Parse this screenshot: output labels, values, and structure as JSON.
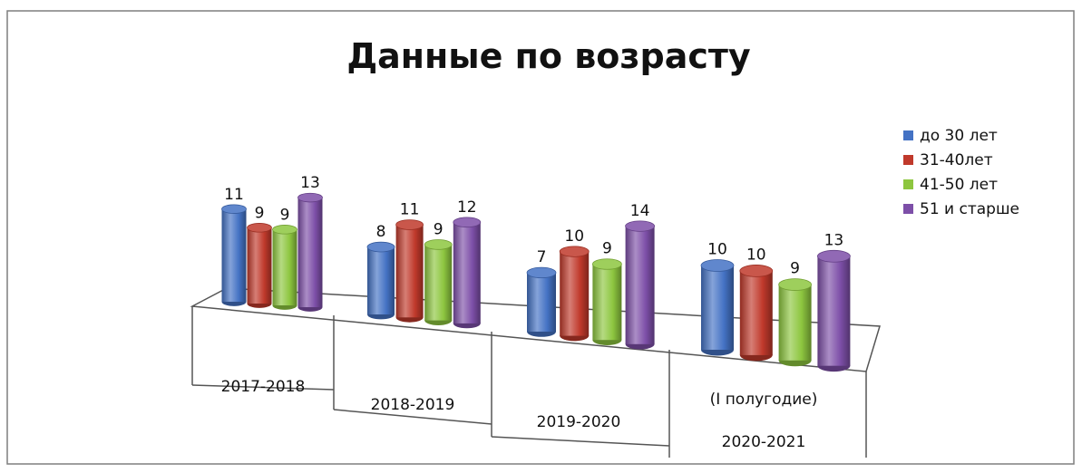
{
  "chart_data": {
    "type": "bar",
    "style": "3d-cylinder",
    "title": "Данные по возрасту",
    "categories": [
      "2017-2018",
      "2018-2019",
      "2019-2020",
      "(I полугодие)\n2020-2021"
    ],
    "category_lines": [
      [
        "2017-2018"
      ],
      [
        "2018-2019"
      ],
      [
        "2019-2020"
      ],
      [
        "(I полугодие)",
        "2020-2021"
      ]
    ],
    "series": [
      {
        "name": "до 30 лет",
        "values": [
          11,
          8,
          7,
          10
        ],
        "color": "#4472C4"
      },
      {
        "name": "31-40лет",
        "values": [
          9,
          11,
          10,
          10
        ],
        "color": "#C0392B"
      },
      {
        "name": "41-50 лет",
        "values": [
          9,
          9,
          9,
          9
        ],
        "color": "#8DC63F"
      },
      {
        "name": "51 и старше",
        "values": [
          13,
          12,
          14,
          13
        ],
        "color": "#7D4FA8"
      }
    ],
    "data_labels": true,
    "legend_position": "right",
    "grid": false
  }
}
